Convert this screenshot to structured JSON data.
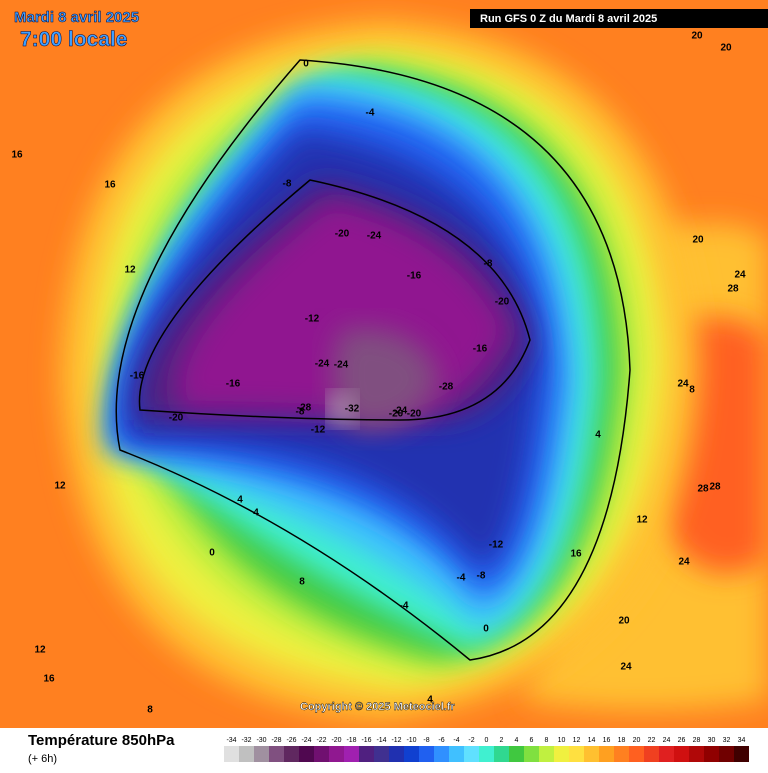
{
  "header": {
    "date": "Mardi 8 avril 2025",
    "time": "7:00 locale",
    "run": "Run GFS 0 Z du Mardi 8 avril 2025"
  },
  "copyright": "Copyright © 2025 Meteociel.fr",
  "map_labels": [
    -20,
    -24,
    -16,
    -8,
    -20,
    -16,
    -20,
    -24,
    -24,
    -28,
    -32,
    -28,
    -24,
    -20,
    -20,
    -12,
    -16,
    -16,
    -12,
    -8,
    -4,
    0,
    4,
    4,
    8,
    12,
    16,
    20,
    24,
    28,
    24,
    28,
    24,
    20,
    16,
    12,
    8,
    4,
    0,
    -12,
    -8,
    -4,
    20,
    24,
    28,
    16,
    12,
    8,
    4,
    0,
    -4,
    -8,
    12,
    16,
    20
  ],
  "legend": {
    "title": "Température 850hPa",
    "subtitle": "(+ 6h)",
    "ticks": [
      -34,
      -32,
      -30,
      -28,
      -26,
      -24,
      -22,
      -20,
      -18,
      -16,
      -14,
      -12,
      -10,
      -8,
      -6,
      -4,
      -2,
      0,
      2,
      4,
      6,
      8,
      10,
      12,
      14,
      16,
      18,
      20,
      22,
      24,
      26,
      28,
      30,
      32,
      34
    ],
    "colors": [
      "#e0e0e0",
      "#c0c0c0",
      "#a090a0",
      "#805080",
      "#602860",
      "#500850",
      "#701070",
      "#901890",
      "#a020b0",
      "#502080",
      "#403090",
      "#2030b0",
      "#1040d0",
      "#2060f0",
      "#3090ff",
      "#40c0ff",
      "#60e0ff",
      "#40f0d0",
      "#30d890",
      "#40c840",
      "#80e040",
      "#c0f040",
      "#f0f040",
      "#ffe040",
      "#ffc030",
      "#ffa020",
      "#ff8020",
      "#ff6020",
      "#f04020",
      "#e02020",
      "#d01010",
      "#b00808",
      "#900000",
      "#700000",
      "#400000"
    ]
  }
}
